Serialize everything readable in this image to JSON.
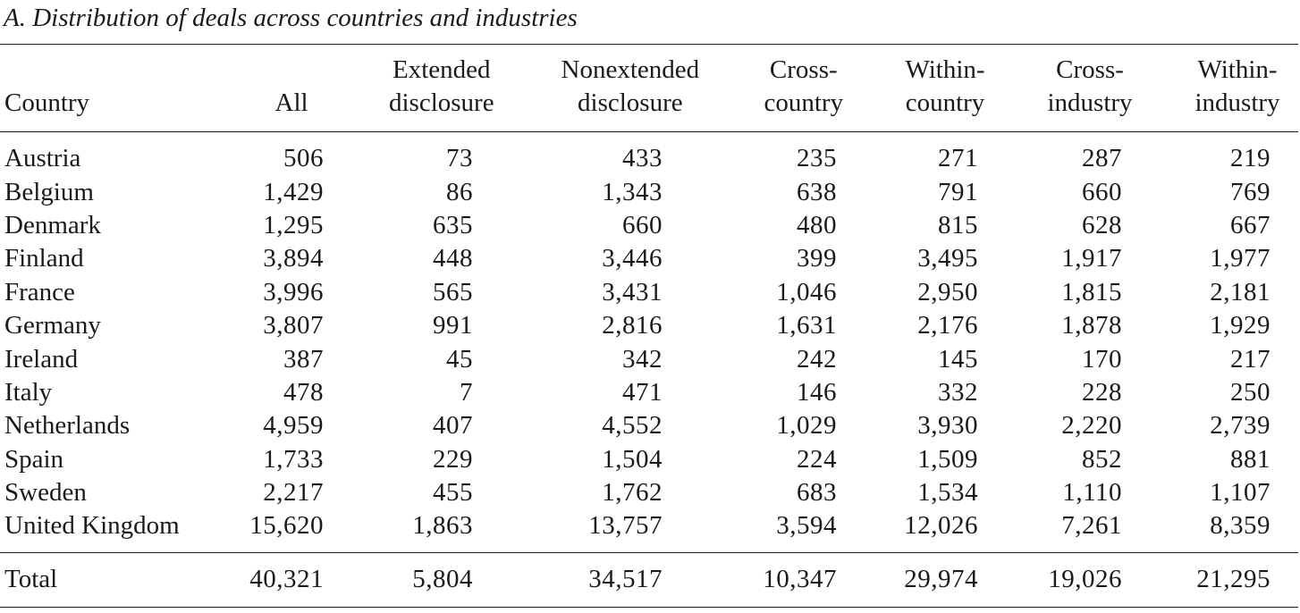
{
  "caption": "A. Distribution of deals across countries and industries",
  "table": {
    "headers": [
      {
        "lines": [
          "Country"
        ]
      },
      {
        "lines": [
          "All"
        ]
      },
      {
        "lines": [
          "Extended",
          "disclosure"
        ]
      },
      {
        "lines": [
          "Nonextended",
          "disclosure"
        ]
      },
      {
        "lines": [
          "Cross-",
          "country"
        ]
      },
      {
        "lines": [
          "Within-",
          "country"
        ]
      },
      {
        "lines": [
          "Cross-",
          "industry"
        ]
      },
      {
        "lines": [
          "Within-",
          "industry"
        ]
      }
    ],
    "rows": [
      [
        "Austria",
        "506",
        "73",
        "433",
        "235",
        "271",
        "287",
        "219"
      ],
      [
        "Belgium",
        "1,429",
        "86",
        "1,343",
        "638",
        "791",
        "660",
        "769"
      ],
      [
        "Denmark",
        "1,295",
        "635",
        "660",
        "480",
        "815",
        "628",
        "667"
      ],
      [
        "Finland",
        "3,894",
        "448",
        "3,446",
        "399",
        "3,495",
        "1,917",
        "1,977"
      ],
      [
        "France",
        "3,996",
        "565",
        "3,431",
        "1,046",
        "2,950",
        "1,815",
        "2,181"
      ],
      [
        "Germany",
        "3,807",
        "991",
        "2,816",
        "1,631",
        "2,176",
        "1,878",
        "1,929"
      ],
      [
        "Ireland",
        "387",
        "45",
        "342",
        "242",
        "145",
        "170",
        "217"
      ],
      [
        "Italy",
        "478",
        "7",
        "471",
        "146",
        "332",
        "228",
        "250"
      ],
      [
        "Netherlands",
        "4,959",
        "407",
        "4,552",
        "1,029",
        "3,930",
        "2,220",
        "2,739"
      ],
      [
        "Spain",
        "1,733",
        "229",
        "1,504",
        "224",
        "1,509",
        "852",
        "881"
      ],
      [
        "Sweden",
        "2,217",
        "455",
        "1,762",
        "683",
        "1,534",
        "1,110",
        "1,107"
      ],
      [
        "United Kingdom",
        "15,620",
        "1,863",
        "13,757",
        "3,594",
        "12,026",
        "7,261",
        "8,359"
      ]
    ],
    "total": [
      "Total",
      "40,321",
      "5,804",
      "34,517",
      "10,347",
      "29,974",
      "19,026",
      "21,295"
    ]
  }
}
